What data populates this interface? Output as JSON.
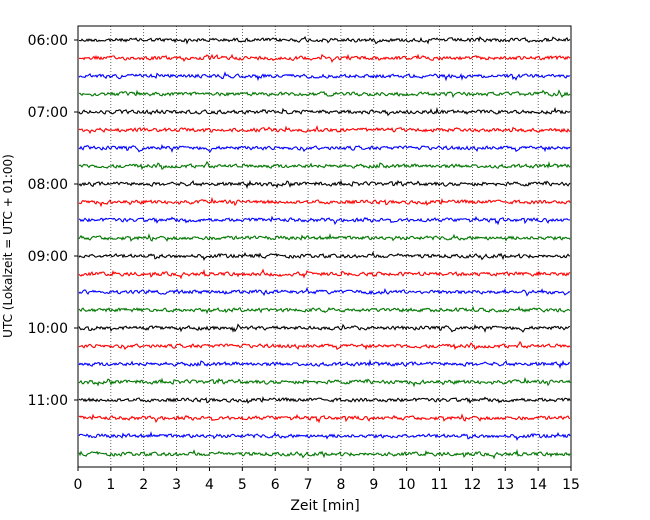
{
  "chart_data": {
    "type": "line",
    "title": "",
    "xlabel": "Zeit  [min]",
    "ylabel": "UTC (Lokalzeit = UTC + 01:00)",
    "xlim": [
      0,
      15
    ],
    "x_ticks": [
      "0",
      "1",
      "2",
      "3",
      "4",
      "5",
      "6",
      "7",
      "8",
      "9",
      "10",
      "11",
      "12",
      "13",
      "14",
      "15"
    ],
    "y_tick_labels": [
      "06:00",
      "07:00",
      "08:00",
      "09:00",
      "10:00",
      "11:00"
    ],
    "grid": "vertical dotted",
    "trace_interval_min": 15,
    "trace_start": "06:00",
    "trace_count": 24,
    "trace_colors": [
      "#000000",
      "#ff0000",
      "#0000ff",
      "#007700"
    ]
  }
}
